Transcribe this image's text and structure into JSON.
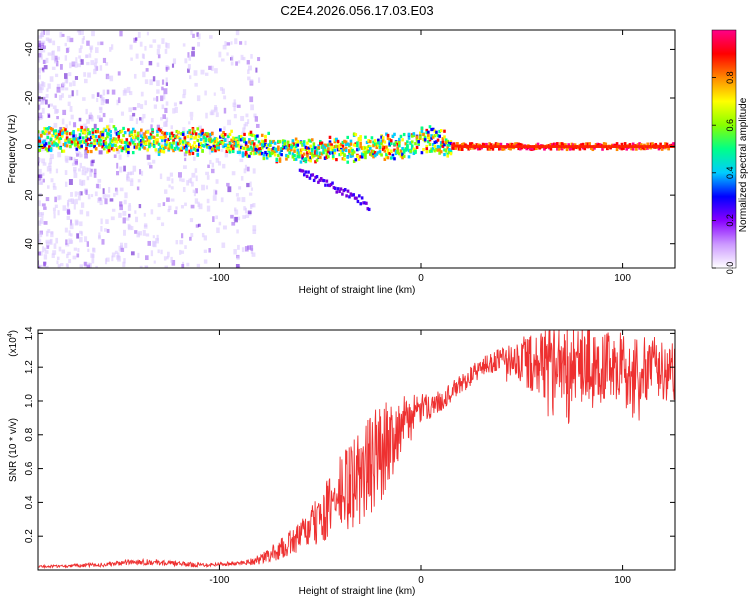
{
  "title": "C2E4.2026.056.17.03.E03",
  "colors": {
    "snr_line": "#ee3030",
    "colormap": [
      "#ffffff",
      "#cc99ff",
      "#8800ff",
      "#0000ff",
      "#00ccff",
      "#00ff88",
      "#88ff00",
      "#ffff00",
      "#ff8800",
      "#ff0000",
      "#ff0088"
    ]
  },
  "chart_data": [
    {
      "type": "heatmap",
      "name": "spectrogram",
      "title": "C2E4.2026.056.17.03.E03",
      "xlabel": "Height of straight line (km)",
      "ylabel": "Frequency (Hz)",
      "xlim": [
        -190,
        126
      ],
      "ylim": [
        -50,
        48
      ],
      "xticks": [
        -100,
        0,
        100
      ],
      "yticks": [
        -40,
        -20,
        0,
        20,
        40
      ],
      "colorbar": {
        "label": "Normalized spectral amplitude",
        "range": [
          0,
          1
        ],
        "ticks": [
          0.0,
          0.2,
          0.4,
          0.6,
          0.8
        ]
      },
      "main_band_center_hz": [
        [
          -190,
          3
        ],
        [
          -160,
          3
        ],
        [
          -130,
          2
        ],
        [
          -100,
          2
        ],
        [
          -80,
          0
        ],
        [
          -60,
          -2
        ],
        [
          -40,
          -1
        ],
        [
          -20,
          0
        ],
        [
          -10,
          0
        ],
        [
          0,
          2
        ],
        [
          5,
          3
        ],
        [
          10,
          1
        ],
        [
          20,
          0
        ],
        [
          126,
          0
        ]
      ],
      "descending_branch_hz": [
        [
          -60,
          -10
        ],
        [
          -50,
          -14
        ],
        [
          -40,
          -18
        ],
        [
          -30,
          -22
        ],
        [
          -25,
          -25
        ]
      ]
    },
    {
      "type": "line",
      "name": "snr",
      "xlabel": "Height of straight line (km)",
      "ylabel": "SNR (10 * v/v)",
      "y_multiplier": "(x10^4)",
      "xlim": [
        -190,
        126
      ],
      "ylim": [
        0,
        1.42
      ],
      "xticks": [
        -100,
        0,
        100
      ],
      "yticks": [
        0.2,
        0.4,
        0.6,
        0.8,
        1.0,
        1.2,
        1.4
      ],
      "envelope_x": [
        -190,
        -160,
        -140,
        -110,
        -90,
        -80,
        -70,
        -60,
        -50,
        -40,
        -30,
        -20,
        -10,
        0,
        10,
        20,
        30,
        40,
        60,
        80,
        100,
        126
      ],
      "envelope_base": [
        0.02,
        0.03,
        0.05,
        0.03,
        0.04,
        0.06,
        0.12,
        0.2,
        0.3,
        0.45,
        0.55,
        0.7,
        0.85,
        0.95,
        1.0,
        1.1,
        1.2,
        1.25,
        1.22,
        1.22,
        1.2,
        1.18
      ],
      "envelope_spread": [
        0.01,
        0.02,
        0.03,
        0.02,
        0.02,
        0.05,
        0.1,
        0.15,
        0.25,
        0.4,
        0.5,
        0.5,
        0.3,
        0.15,
        0.1,
        0.1,
        0.1,
        0.12,
        0.35,
        0.4,
        0.35,
        0.3
      ]
    }
  ],
  "labels": {
    "ylabel_top": "Frequency (Hz)",
    "xlabel_top": "Height of straight line (km)",
    "colorbar_label": "Normalized spectral amplitude",
    "ylabel_bottom": "SNR (10 * v/v)",
    "xlabel_bottom": "Height of straight line (km)",
    "multiplier_base": "(x10",
    "multiplier_exp": "4",
    "multiplier_close": ")"
  },
  "tick_labels": {
    "top_x": [
      "-100",
      "0",
      "100"
    ],
    "top_y": [
      "40",
      "20",
      "0",
      "-20",
      "-40"
    ],
    "colorbar": [
      "0.0",
      "0.2",
      "0.4",
      "0.6",
      "0.8"
    ],
    "bottom_x": [
      "-100",
      "0",
      "100"
    ],
    "bottom_y": [
      "0.2",
      "0.4",
      "0.6",
      "0.8",
      "1.0",
      "1.2",
      "1.4"
    ]
  }
}
